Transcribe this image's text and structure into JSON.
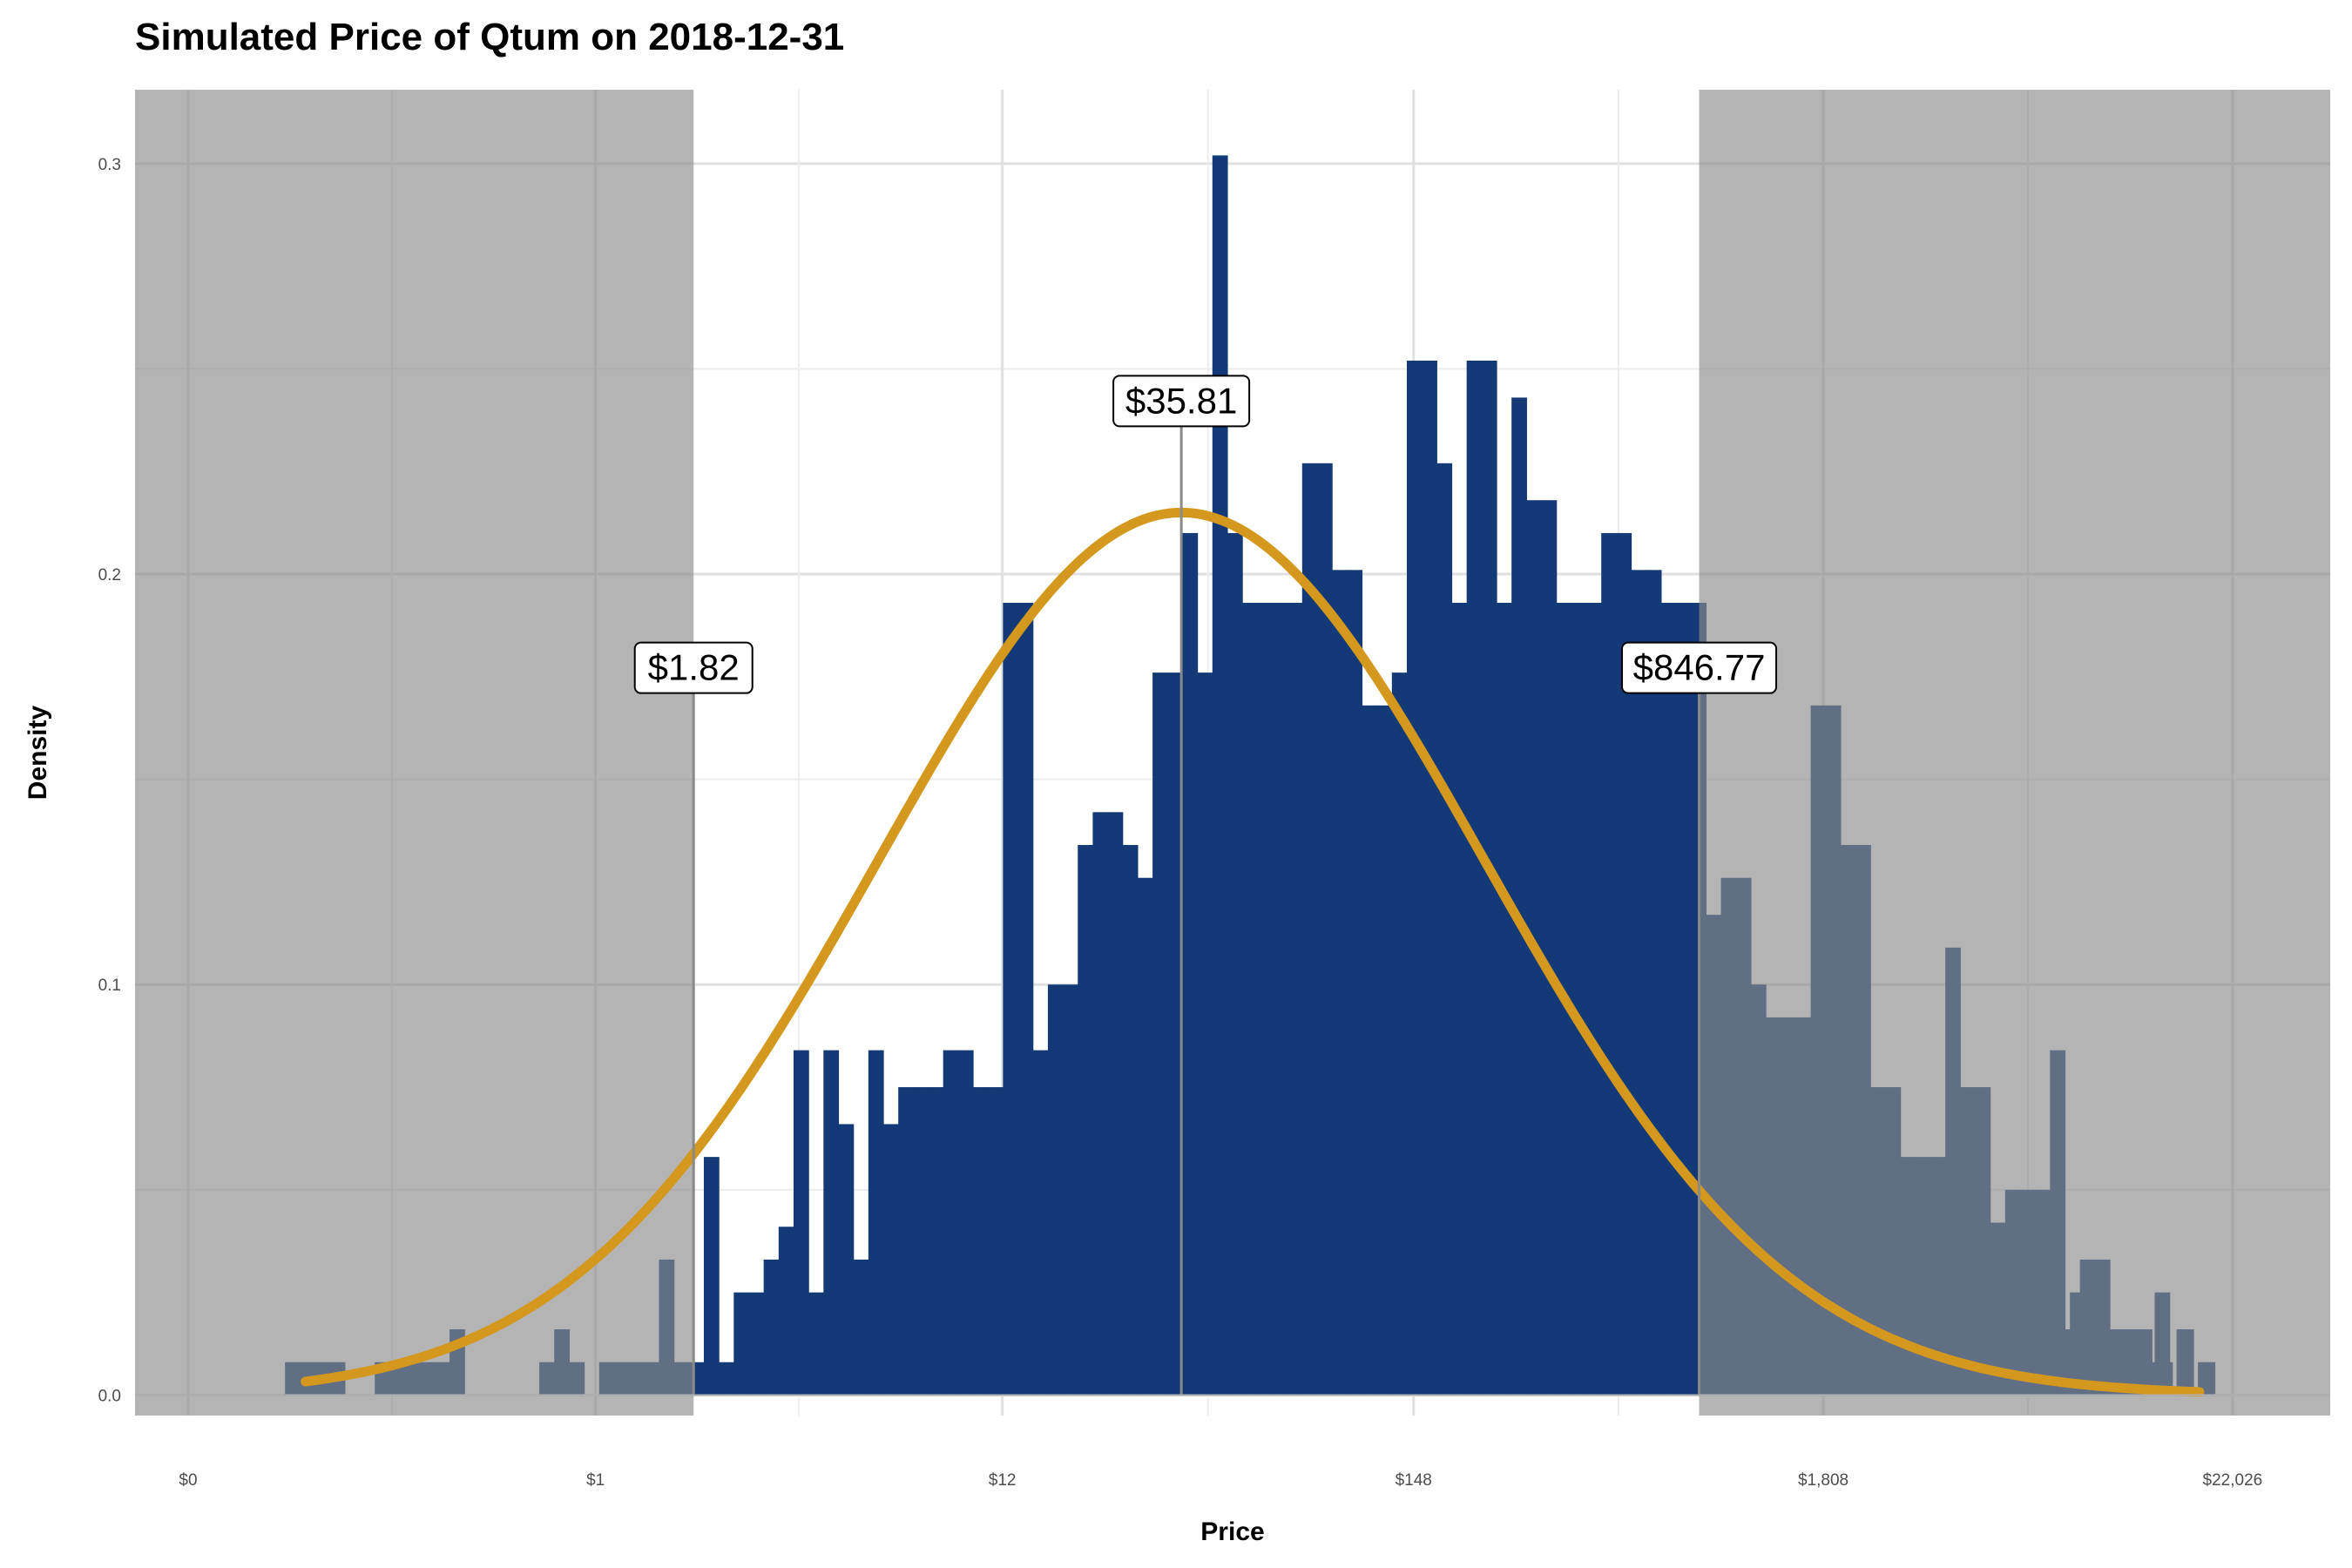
{
  "chart_data": {
    "type": "histogram",
    "title": "Simulated Price of Qtum on 2018-12-31",
    "xlabel": "Price",
    "ylabel": "Density",
    "x_scale": "log",
    "x_ticks": [
      {
        "value": 0.083,
        "label": "$0"
      },
      {
        "value": 1,
        "label": "$1"
      },
      {
        "value": 12,
        "label": "$12"
      },
      {
        "value": 148,
        "label": "$148"
      },
      {
        "value": 1808,
        "label": "$1,808"
      },
      {
        "value": 22026,
        "label": "$22,026"
      }
    ],
    "x_range": [
      0.06,
      40000
    ],
    "y_ticks": [
      0.0,
      0.1,
      0.2,
      0.3
    ],
    "y_tick_labels": [
      "0.0",
      "0.1",
      "0.2",
      "0.3"
    ],
    "ylim": [
      -0.005,
      0.318
    ],
    "bin_range": [
      0.15,
      15000
    ],
    "bin_count": 126,
    "bin_density": [
      0.008,
      0.008,
      0.008,
      0.008,
      0,
      0,
      0.008,
      0.008,
      0.008,
      0.008,
      0.008,
      0.016,
      0,
      0,
      0,
      0,
      0,
      0.008,
      0.016,
      0.008,
      0,
      0.008,
      0.008,
      0.008,
      0.008,
      0.033,
      0.008,
      0.008,
      0.058,
      0.008,
      0.025,
      0.025,
      0.033,
      0.041,
      0.084,
      0.025,
      0.084,
      0.066,
      0.033,
      0.084,
      0.066,
      0.075,
      0.075,
      0.075,
      0.084,
      0.084,
      0.075,
      0.075,
      0.193,
      0.193,
      0.084,
      0.1,
      0.1,
      0.134,
      0.142,
      0.142,
      0.134,
      0.126,
      0.176,
      0.176,
      0.21,
      0.176,
      0.302,
      0.21,
      0.193,
      0.193,
      0.193,
      0.193,
      0.227,
      0.227,
      0.201,
      0.201,
      0.168,
      0.168,
      0.176,
      0.252,
      0.252,
      0.227,
      0.193,
      0.252,
      0.252,
      0.193,
      0.243,
      0.218,
      0.218,
      0.193,
      0.193,
      0.193,
      0.21,
      0.21,
      0.201,
      0.201,
      0.193,
      0.193,
      0.193,
      0.117,
      0.126,
      0.126,
      0.1,
      0.092,
      0.092,
      0.092,
      0.168,
      0.168,
      0.134,
      0.134,
      0.075,
      0.075,
      0.058,
      0.058,
      0.058,
      0.109,
      0.075,
      0.075,
      0.042,
      0.05,
      0.05,
      0.05,
      0.084,
      0.016,
      0.033,
      0.033,
      0.016,
      0.016,
      0.008,
      0.025
    ],
    "tail_bins": [
      {
        "x": 2500,
        "density": 0.008
      },
      {
        "x": 2900,
        "density": 0.025
      },
      {
        "x": 3300,
        "density": 0.033
      },
      {
        "x": 3800,
        "density": 0.016
      },
      {
        "x": 4300,
        "density": 0.025
      },
      {
        "x": 5000,
        "density": 0.008
      },
      {
        "x": 5700,
        "density": 0.016
      },
      {
        "x": 6600,
        "density": 0.016
      },
      {
        "x": 7500,
        "density": 0.008
      },
      {
        "x": 8600,
        "density": 0.025
      },
      {
        "x": 9800,
        "density": 0
      },
      {
        "x": 11200,
        "density": 0
      },
      {
        "x": 12800,
        "density": 0.016
      },
      {
        "x": 14500,
        "density": 0.008
      },
      {
        "x": 16500,
        "density": 0.016
      },
      {
        "x": 18800,
        "density": 0.008
      }
    ],
    "normal_curve": {
      "mean_price": 35.81,
      "peak_density": 0.215,
      "log_sd": 1.85,
      "x_range": [
        0.17,
        18000
      ]
    },
    "shaded_regions": [
      {
        "from": 0.06,
        "to": 1.82
      },
      {
        "from": 846.77,
        "to": 40000
      }
    ],
    "annotations": [
      {
        "x": 1.82,
        "y": 0.171,
        "label": "$1.82"
      },
      {
        "x": 35.81,
        "y": 0.236,
        "label": "$35.81"
      },
      {
        "x": 846.77,
        "y": 0.171,
        "label": "$846.77"
      }
    ],
    "colors": {
      "bars": "#133a76",
      "curve": "#d4981e",
      "shade": "#8c8c8c",
      "grid_major": "#e0e0e0",
      "grid_minor": "#ececec"
    }
  }
}
